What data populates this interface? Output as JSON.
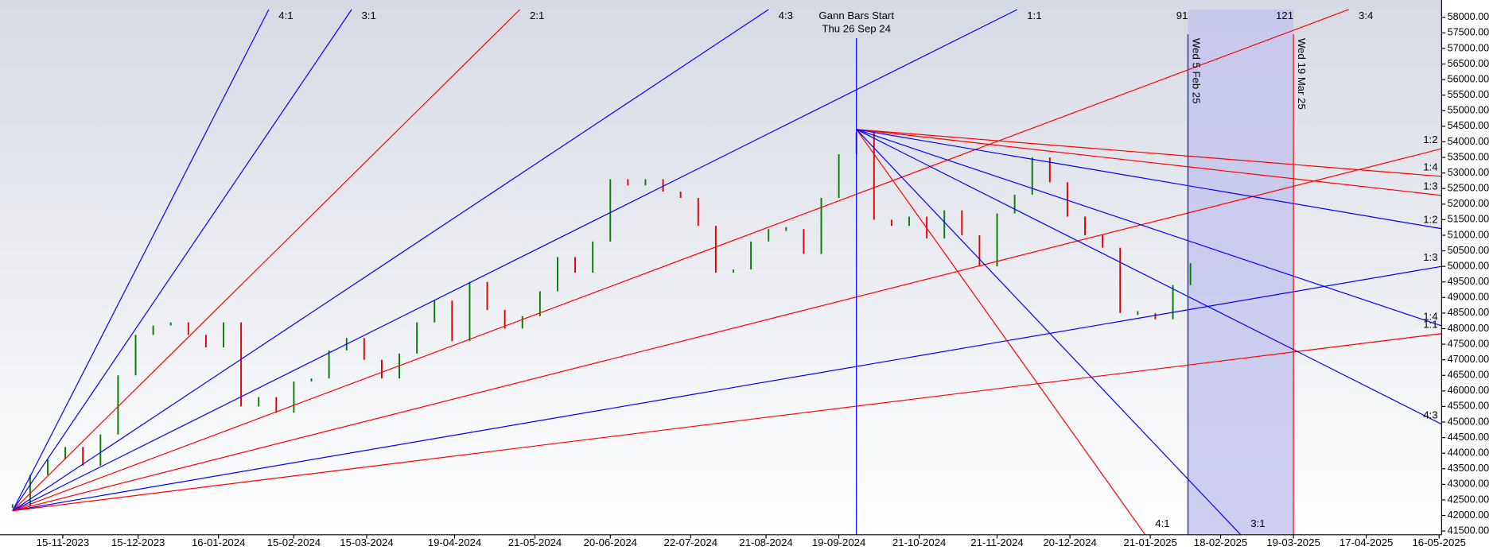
{
  "chart_data": {
    "type": "price",
    "x": [
      "2023-10-26",
      "2023-11-02",
      "2023-11-09",
      "2023-11-16",
      "2023-11-23",
      "2023-11-30",
      "2023-12-07",
      "2023-12-14",
      "2023-12-21",
      "2023-12-28",
      "2024-01-04",
      "2024-01-11",
      "2024-01-18",
      "2024-01-25",
      "2024-02-01",
      "2024-02-08",
      "2024-02-15",
      "2024-02-22",
      "2024-02-29",
      "2024-03-07",
      "2024-03-14",
      "2024-03-21",
      "2024-03-28",
      "2024-04-04",
      "2024-04-11",
      "2024-04-18",
      "2024-04-25",
      "2024-05-02",
      "2024-05-09",
      "2024-05-16",
      "2024-05-23",
      "2024-05-30",
      "2024-06-06",
      "2024-06-13",
      "2024-06-20",
      "2024-06-27",
      "2024-07-04",
      "2024-07-11",
      "2024-07-18",
      "2024-07-25",
      "2024-08-01",
      "2024-08-08",
      "2024-08-15",
      "2024-08-22",
      "2024-08-29",
      "2024-09-05",
      "2024-09-12",
      "2024-09-19",
      "2024-09-26",
      "2024-10-03",
      "2024-10-10",
      "2024-10-17",
      "2024-10-24",
      "2024-10-31",
      "2024-11-07",
      "2024-11-14",
      "2024-11-21",
      "2024-11-28",
      "2024-12-05",
      "2024-12-12",
      "2024-12-19",
      "2024-12-26",
      "2025-01-02",
      "2025-01-09",
      "2025-01-16",
      "2025-01-23",
      "2025-01-30",
      "2025-02-06"
    ],
    "values": [
      42300,
      43300,
      43800,
      44200,
      43600,
      44600,
      46500,
      47800,
      48100,
      48200,
      47800,
      47400,
      48200,
      45500,
      45800,
      45300,
      46300,
      46400,
      47300,
      47700,
      47000,
      46400,
      47200,
      48200,
      48900,
      47600,
      49500,
      48600,
      48000,
      48400,
      49200,
      50300,
      49800,
      50800,
      52800,
      52600,
      52800,
      52400,
      52200,
      51300,
      49800,
      49900,
      50800,
      51200,
      51200,
      50400,
      52200,
      53600,
      54300,
      51500,
      51300,
      51600,
      50900,
      51800,
      51000,
      50000,
      51700,
      52300,
      53500,
      52700,
      51600,
      51000,
      50600,
      48500,
      48500,
      48300,
      49400,
      50100
    ],
    "up_color": "#008000",
    "down_color": "#e00000",
    "xlim": [
      "2023-10-21",
      "2025-05-17"
    ],
    "xticks": [
      {
        "value": "2023-11-15",
        "label": "15-11-2023"
      },
      {
        "value": "2023-12-15",
        "label": "15-12-2023"
      },
      {
        "value": "2024-01-16",
        "label": "16-01-2024"
      },
      {
        "value": "2024-02-15",
        "label": "15-02-2024"
      },
      {
        "value": "2024-03-15",
        "label": "15-03-2024"
      },
      {
        "value": "2024-04-19",
        "label": "19-04-2024"
      },
      {
        "value": "2024-05-21",
        "label": "21-05-2024"
      },
      {
        "value": "2024-06-20",
        "label": "20-06-2024"
      },
      {
        "value": "2024-07-22",
        "label": "22-07-2024"
      },
      {
        "value": "2024-08-21",
        "label": "21-08-2024"
      },
      {
        "value": "2024-09-19",
        "label": "19-09-2024"
      },
      {
        "value": "2024-10-21",
        "label": "21-10-2024"
      },
      {
        "value": "2024-11-21",
        "label": "21-11-2024"
      },
      {
        "value": "2024-12-20",
        "label": "20-12-2024"
      },
      {
        "value": "2025-01-21",
        "label": "21-01-2025"
      },
      {
        "value": "2025-02-18",
        "label": "18-02-2025"
      },
      {
        "value": "2025-03-19",
        "label": "19-03-2025"
      },
      {
        "value": "2025-04-17",
        "label": "17-04-2025"
      },
      {
        "value": "2025-05-16",
        "label": "16-05-2025"
      }
    ],
    "ylim": [
      41380,
      58250
    ],
    "yticks": [
      {
        "value": 41500,
        "label": "41500.00"
      },
      {
        "value": 42000,
        "label": "42000.00"
      },
      {
        "value": 42500,
        "label": "42500.00"
      },
      {
        "value": 43000,
        "label": "43000.00"
      },
      {
        "value": 43500,
        "label": "43500.00"
      },
      {
        "value": 44000,
        "label": "44000.00"
      },
      {
        "value": 44500,
        "label": "44500.00"
      },
      {
        "value": 45000,
        "label": "45000.00"
      },
      {
        "value": 45500,
        "label": "45500.00"
      },
      {
        "value": 46000,
        "label": "46000.00"
      },
      {
        "value": 46500,
        "label": "46500.00"
      },
      {
        "value": 47000,
        "label": "47000.00"
      },
      {
        "value": 47500,
        "label": "47500.00"
      },
      {
        "value": 48000,
        "label": "48000.00"
      },
      {
        "value": 48500,
        "label": "48500.00"
      },
      {
        "value": 49000,
        "label": "49000.00"
      },
      {
        "value": 49500,
        "label": "49500.00"
      },
      {
        "value": 50000,
        "label": "50000.00"
      },
      {
        "value": 50500,
        "label": "50500.00"
      },
      {
        "value": 51000,
        "label": "51000.00"
      },
      {
        "value": 51500,
        "label": "51500.00"
      },
      {
        "value": 52000,
        "label": "52000.00"
      },
      {
        "value": 52500,
        "label": "52500.00"
      },
      {
        "value": 53000,
        "label": "53000.00"
      },
      {
        "value": 53500,
        "label": "53500.00"
      },
      {
        "value": 54000,
        "label": "54000.00"
      },
      {
        "value": 54500,
        "label": "54500.00"
      },
      {
        "value": 55000,
        "label": "55000.00"
      },
      {
        "value": 55500,
        "label": "55500.00"
      },
      {
        "value": 56000,
        "label": "56000.00"
      },
      {
        "value": 56500,
        "label": "56500.00"
      },
      {
        "value": 57000,
        "label": "57000.00"
      },
      {
        "value": 57500,
        "label": "57500.00"
      },
      {
        "value": 58000,
        "label": "58000.00"
      }
    ],
    "fans": [
      {
        "origin": {
          "x": "2023-10-26",
          "y": 42150
        },
        "lines": [
          {
            "label": "4:1",
            "color": "#0000ff",
            "to": {
              "x": "2024-02-05",
              "y": 58250
            }
          },
          {
            "label": "3:1",
            "color": "#0000ff",
            "to": {
              "x": "2024-03-09",
              "y": 58250
            }
          },
          {
            "label": "2:1",
            "color": "#ff0000",
            "to": {
              "x": "2024-05-15",
              "y": 58250
            }
          },
          {
            "label": "4:3",
            "color": "#0000ff",
            "to": {
              "x": "2024-08-22",
              "y": 58250
            }
          },
          {
            "label": "1:1",
            "color": "#0000ff",
            "to": {
              "x": "2024-11-29",
              "y": 58250
            }
          },
          {
            "label": "3:4",
            "color": "#ff0000",
            "to": {
              "x": "2025-04-10",
              "y": 58250
            }
          },
          {
            "label": "1:2",
            "color": "#ff0000",
            "to": {
              "x": "2025-05-17",
              "y": 53780
            }
          },
          {
            "label": "1:3",
            "color": "#0000ff",
            "to": {
              "x": "2025-05-17",
              "y": 50000
            }
          },
          {
            "label": "1:1",
            "color": "#ff0000",
            "to": {
              "x": "2025-05-17",
              "y": 47840
            }
          }
        ]
      },
      {
        "origin": {
          "x": "2024-09-26",
          "y": 54400
        },
        "lines": [
          {
            "label": "1:4",
            "color": "#ff0000",
            "to": {
              "x": "2025-05-17",
              "y": 52890
            }
          },
          {
            "label": "1:3",
            "color": "#ff0000",
            "to": {
              "x": "2025-05-17",
              "y": 52280
            }
          },
          {
            "label": "1:2",
            "color": "#0000ff",
            "to": {
              "x": "2025-05-17",
              "y": 51210
            }
          },
          {
            "label": "1:4",
            "color": "#0000ff",
            "to": {
              "x": "2025-05-17",
              "y": 48090
            }
          },
          {
            "label": "4:3",
            "color": "#0000ff",
            "to": {
              "x": "2025-05-17",
              "y": 44930
            }
          },
          {
            "label": "4:1",
            "color": "#ff0000",
            "to": {
              "x": "2025-01-19",
              "y": 41380
            }
          },
          {
            "label": "3:1",
            "color": "#0000ff",
            "to": {
              "x": "2025-02-26",
              "y": 41380
            }
          }
        ]
      }
    ],
    "highlight": {
      "from": "2025-02-05",
      "to": "2025-03-19",
      "color": "#c4c6ec"
    },
    "markers": [
      {
        "x": "2024-09-26",
        "color": "#0000ff",
        "label": "Gann Bars Start",
        "sublabel": "Thu 26 Sep 24"
      },
      {
        "x": "2025-02-05",
        "color": "#0000ff",
        "label": "Wed 5 Feb 25",
        "count": "91"
      },
      {
        "x": "2025-03-19",
        "color": "#ff0000",
        "label": "Wed 19 Mar 25",
        "count": "121"
      }
    ]
  }
}
